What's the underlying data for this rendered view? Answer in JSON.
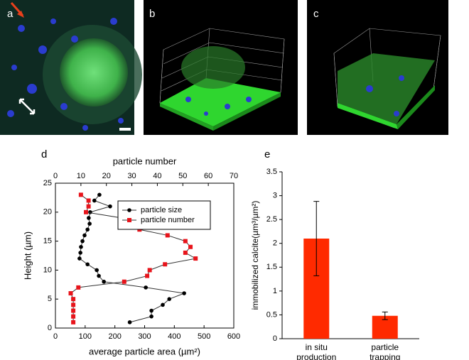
{
  "images": [
    {
      "label": "a"
    },
    {
      "label": "b"
    },
    {
      "label": "c"
    }
  ],
  "chart_data": [
    {
      "type": "line",
      "panel_label": "d",
      "xlabel": "average particle area (µm²)",
      "x2label": "particle number",
      "ylabel": "Height (µm)",
      "y": [
        1,
        2,
        3,
        4,
        5,
        6,
        7,
        8,
        9,
        10,
        11,
        12,
        13,
        14,
        15,
        16,
        17,
        18,
        19,
        20,
        21,
        22,
        23
      ],
      "series": [
        {
          "name": "particle size",
          "color": "#000000",
          "marker": "circle",
          "values": [
            250,
            323,
            323,
            361,
            383,
            433,
            304,
            163,
            146,
            139,
            108,
            81,
            84,
            86,
            91,
            98,
            108,
            115,
            112,
            117,
            184,
            131,
            148
          ]
        },
        {
          "name": "particle number",
          "color": "#e8141b",
          "marker": "square",
          "axis": "x2",
          "values": [
            7,
            7,
            7,
            7,
            7,
            6,
            9,
            27,
            36,
            37,
            43,
            55,
            51,
            53,
            51,
            44,
            33,
            26,
            26,
            12,
            13,
            13,
            10
          ]
        }
      ],
      "xlim": [
        0,
        600
      ],
      "xticks": [
        0,
        100,
        200,
        300,
        400,
        500,
        600
      ],
      "x2lim": [
        0,
        70
      ],
      "x2ticks": [
        0,
        10,
        20,
        30,
        40,
        50,
        60,
        70
      ],
      "ylim": [
        0,
        25
      ],
      "yticks": [
        0,
        5,
        10,
        15,
        20,
        25
      ],
      "legend": "top-right"
    },
    {
      "type": "bar",
      "panel_label": "e",
      "ylabel": "immobilized calcite(µm³/µm²)",
      "categories": [
        "in situ production",
        "particle trapping"
      ],
      "values": [
        2.1,
        0.48
      ],
      "errors": [
        0.78,
        0.08
      ],
      "color": "#ff2a00",
      "ylim": [
        0,
        3.5
      ],
      "yticks": [
        0,
        0.5,
        1,
        1.5,
        2,
        2.5,
        3,
        3.5
      ]
    }
  ]
}
